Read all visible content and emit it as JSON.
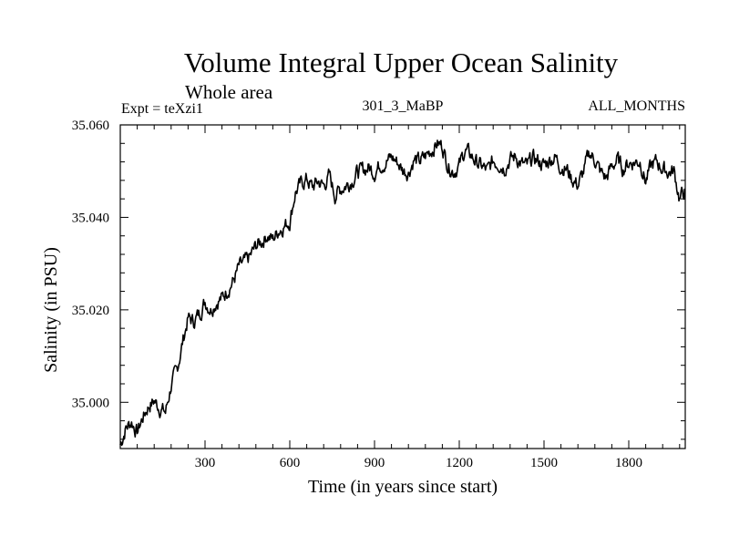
{
  "chart_data": {
    "type": "line",
    "title": "Volume Integral Upper Ocean Salinity",
    "subtitle": "Whole area",
    "annotations": {
      "left": "Expt = teXzi1",
      "center": "301_3_MaBP",
      "right": "ALL_MONTHS"
    },
    "xlabel": "Time (in years since start)",
    "ylabel": "Salinity (in PSU)",
    "xlim": [
      0,
      2000
    ],
    "ylim": [
      34.99,
      35.06
    ],
    "xticks": [
      300,
      600,
      900,
      1200,
      1500,
      1800
    ],
    "yticks": [
      35.0,
      35.02,
      35.04,
      35.06
    ],
    "ytick_labels": [
      "35.000",
      "35.020",
      "35.040",
      "35.060"
    ],
    "grid": false,
    "series": [
      {
        "name": "Salinity",
        "color": "#000000",
        "points": [
          [
            0,
            34.9908
          ],
          [
            20,
            34.9945
          ],
          [
            40,
            34.9958
          ],
          [
            60,
            34.9935
          ],
          [
            80,
            34.9968
          ],
          [
            100,
            34.9992
          ],
          [
            120,
            35.0003
          ],
          [
            140,
            34.9988
          ],
          [
            160,
            34.9978
          ],
          [
            180,
            35.0036
          ],
          [
            200,
            35.0068
          ],
          [
            220,
            35.0128
          ],
          [
            240,
            35.0182
          ],
          [
            260,
            35.0175
          ],
          [
            280,
            35.0192
          ],
          [
            300,
            35.0218
          ],
          [
            320,
            35.0202
          ],
          [
            340,
            35.0218
          ],
          [
            360,
            35.0225
          ],
          [
            380,
            35.0245
          ],
          [
            400,
            35.0262
          ],
          [
            420,
            35.0292
          ],
          [
            440,
            35.0302
          ],
          [
            460,
            35.0315
          ],
          [
            480,
            35.0338
          ],
          [
            500,
            35.0348
          ],
          [
            520,
            35.0362
          ],
          [
            540,
            35.0352
          ],
          [
            560,
            35.0372
          ],
          [
            580,
            35.0382
          ],
          [
            600,
            35.0392
          ],
          [
            620,
            35.0455
          ],
          [
            640,
            35.0472
          ],
          [
            660,
            35.0483
          ],
          [
            680,
            35.0465
          ],
          [
            700,
            35.0478
          ],
          [
            720,
            35.0468
          ],
          [
            740,
            35.049
          ],
          [
            760,
            35.0448
          ],
          [
            780,
            35.0462
          ],
          [
            800,
            35.047
          ],
          [
            820,
            35.048
          ],
          [
            840,
            35.0498
          ],
          [
            860,
            35.0502
          ],
          [
            880,
            35.0508
          ],
          [
            900,
            35.0498
          ],
          [
            920,
            35.0515
          ],
          [
            940,
            35.052
          ],
          [
            960,
            35.053
          ],
          [
            980,
            35.052
          ],
          [
            1000,
            35.0502
          ],
          [
            1020,
            35.0498
          ],
          [
            1040,
            35.0525
          ],
          [
            1060,
            35.052
          ],
          [
            1080,
            35.0532
          ],
          [
            1100,
            35.0545
          ],
          [
            1120,
            35.056
          ],
          [
            1140,
            35.0555
          ],
          [
            1160,
            35.0512
          ],
          [
            1180,
            35.05
          ],
          [
            1200,
            35.0512
          ],
          [
            1220,
            35.0545
          ],
          [
            1240,
            35.0535
          ],
          [
            1260,
            35.052
          ],
          [
            1280,
            35.051
          ],
          [
            1300,
            35.05
          ],
          [
            1320,
            35.0522
          ],
          [
            1340,
            35.0518
          ],
          [
            1360,
            35.0508
          ],
          [
            1380,
            35.0525
          ],
          [
            1400,
            35.0532
          ],
          [
            1420,
            35.0515
          ],
          [
            1440,
            35.051
          ],
          [
            1460,
            35.0528
          ],
          [
            1480,
            35.0522
          ],
          [
            1500,
            35.0512
          ],
          [
            1520,
            35.0525
          ],
          [
            1540,
            35.053
          ],
          [
            1560,
            35.051
          ],
          [
            1580,
            35.0505
          ],
          [
            1600,
            35.0482
          ],
          [
            1620,
            35.047
          ],
          [
            1640,
            35.0498
          ],
          [
            1660,
            35.054
          ],
          [
            1680,
            35.0525
          ],
          [
            1700,
            35.0498
          ],
          [
            1720,
            35.0485
          ],
          [
            1740,
            35.051
          ],
          [
            1760,
            35.0525
          ],
          [
            1780,
            35.0505
          ],
          [
            1800,
            35.0518
          ],
          [
            1820,
            35.052
          ],
          [
            1840,
            35.0522
          ],
          [
            1860,
            35.0478
          ],
          [
            1880,
            35.0512
          ],
          [
            1900,
            35.052
          ],
          [
            1920,
            35.0505
          ],
          [
            1940,
            35.0498
          ],
          [
            1960,
            35.05
          ],
          [
            1980,
            35.044
          ],
          [
            2000,
            35.046
          ]
        ]
      }
    ]
  }
}
